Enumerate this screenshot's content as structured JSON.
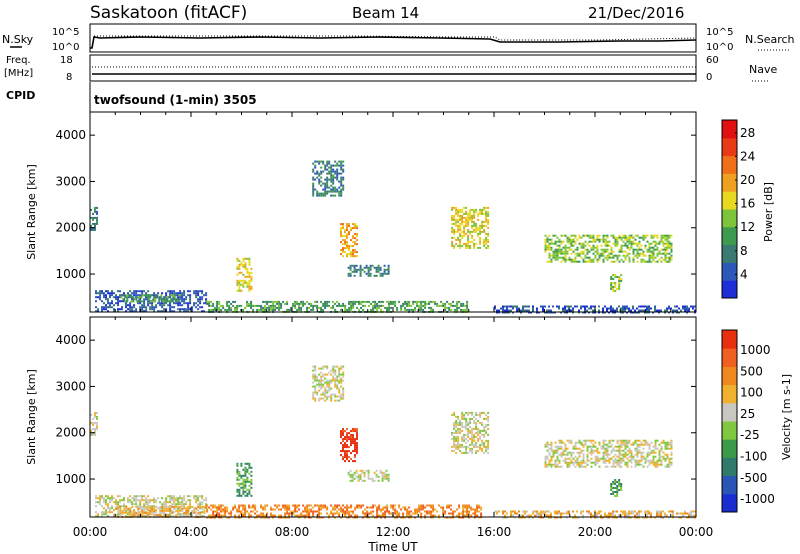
{
  "header": {
    "station": "Saskatoon (fitACF)",
    "beam": "Beam 14",
    "date": "21/Dec/2016"
  },
  "status_panels": {
    "nsky_label": "N.Sky",
    "nsearch_label": "N.Search",
    "freq_label": "Freq.",
    "freq_unit": "[MHz]",
    "nave_label": "Nave",
    "cpid_label": "CPID",
    "noise_left_ticks": [
      "10^5",
      "10^0"
    ],
    "noise_right_ticks": [
      "10^5",
      "10^0"
    ],
    "freq_left_ticks": [
      "18",
      "8"
    ],
    "nave_right_ticks": [
      "60",
      "0"
    ],
    "cpid_text": "twofsound (1-min) 3505"
  },
  "colors": {
    "power_scale": [
      "#1f2fd8",
      "#2e58b8",
      "#3a7a72",
      "#3e9a4e",
      "#7cc43a",
      "#e8d820",
      "#f0a020",
      "#f07018",
      "#e83a14",
      "#e01010"
    ],
    "velocity_scale": [
      "#1a2ed0",
      "#2a55b5",
      "#2f7a6a",
      "#3a9a4a",
      "#80c840",
      "#c8c8c0",
      "#f0b030",
      "#f08820",
      "#f06020",
      "#e83010"
    ]
  },
  "chart_data": [
    {
      "type": "heatmap",
      "name": "power",
      "ylabel": "Slant Range [km]",
      "yticks": [
        "1000",
        "2000",
        "3000",
        "4000"
      ],
      "ylim": [
        180,
        4500
      ],
      "xticks": [
        "00:00",
        "04:00",
        "08:00",
        "12:00",
        "16:00",
        "20:00",
        "00:00"
      ],
      "xlim_hours": [
        0,
        24
      ],
      "colorbar_label": "Power [dB]",
      "colorbar_ticks": [
        "4",
        "8",
        "12",
        "16",
        "20",
        "24",
        "28"
      ],
      "regions": [
        {
          "t0": 0.0,
          "t1": 0.3,
          "r0": 1950,
          "r1": 2450,
          "level": 2
        },
        {
          "t0": 0.2,
          "t1": 4.6,
          "r0": 180,
          "r1": 650,
          "level": 1
        },
        {
          "t0": 1.2,
          "t1": 3.6,
          "r0": 420,
          "r1": 560,
          "level": 3
        },
        {
          "t0": 4.6,
          "t1": 15.0,
          "r0": 180,
          "r1": 420,
          "level": 3
        },
        {
          "t0": 5.8,
          "t1": 6.4,
          "r0": 650,
          "r1": 1350,
          "level": 5
        },
        {
          "t0": 8.8,
          "t1": 10.0,
          "r0": 2700,
          "r1": 3450,
          "level": 2
        },
        {
          "t0": 9.9,
          "t1": 10.6,
          "r0": 1400,
          "r1": 2100,
          "level": 6
        },
        {
          "t0": 10.2,
          "t1": 11.8,
          "r0": 950,
          "r1": 1200,
          "level": 2
        },
        {
          "t0": 14.3,
          "t1": 15.8,
          "r0": 1550,
          "r1": 2450,
          "level": 5
        },
        {
          "t0": 18.0,
          "t1": 23.0,
          "r0": 1250,
          "r1": 1850,
          "level": 4
        },
        {
          "t0": 20.6,
          "t1": 21.0,
          "r0": 650,
          "r1": 1000,
          "level": 4
        },
        {
          "t0": 16.0,
          "t1": 24.0,
          "r0": 180,
          "r1": 320,
          "level": 1
        }
      ]
    },
    {
      "type": "heatmap",
      "name": "velocity",
      "ylabel": "Slant Range [km]",
      "yticks": [
        "1000",
        "2000",
        "3000",
        "4000"
      ],
      "ylim": [
        180,
        4500
      ],
      "xticks": [
        "00:00",
        "04:00",
        "08:00",
        "12:00",
        "16:00",
        "20:00",
        "00:00"
      ],
      "xlim_hours": [
        0,
        24
      ],
      "xlabel": "Time UT",
      "colorbar_label": "Velocity [m s-1]",
      "colorbar_ticks": [
        "1000",
        "500",
        "100",
        "25",
        "-25",
        "-100",
        "-500",
        "-1000"
      ],
      "regions": [
        {
          "t0": 0.0,
          "t1": 0.3,
          "r0": 1950,
          "r1": 2450,
          "level": 5
        },
        {
          "t0": 0.2,
          "t1": 4.6,
          "r0": 180,
          "r1": 650,
          "level": 5
        },
        {
          "t0": 1.0,
          "t1": 4.6,
          "r0": 180,
          "r1": 420,
          "level": 6
        },
        {
          "t0": 4.6,
          "t1": 15.5,
          "r0": 180,
          "r1": 450,
          "level": 7
        },
        {
          "t0": 5.8,
          "t1": 6.4,
          "r0": 650,
          "r1": 1350,
          "level": 3
        },
        {
          "t0": 8.8,
          "t1": 10.0,
          "r0": 2700,
          "r1": 3450,
          "level": 5
        },
        {
          "t0": 9.9,
          "t1": 10.6,
          "r0": 1400,
          "r1": 2100,
          "level": 9
        },
        {
          "t0": 10.2,
          "t1": 11.8,
          "r0": 950,
          "r1": 1200,
          "level": 5
        },
        {
          "t0": 14.3,
          "t1": 15.8,
          "r0": 1550,
          "r1": 2450,
          "level": 5
        },
        {
          "t0": 18.0,
          "t1": 23.0,
          "r0": 1250,
          "r1": 1850,
          "level": 5
        },
        {
          "t0": 20.6,
          "t1": 21.0,
          "r0": 650,
          "r1": 1000,
          "level": 3
        },
        {
          "t0": 16.0,
          "t1": 24.0,
          "r0": 180,
          "r1": 320,
          "level": 6
        }
      ]
    }
  ]
}
